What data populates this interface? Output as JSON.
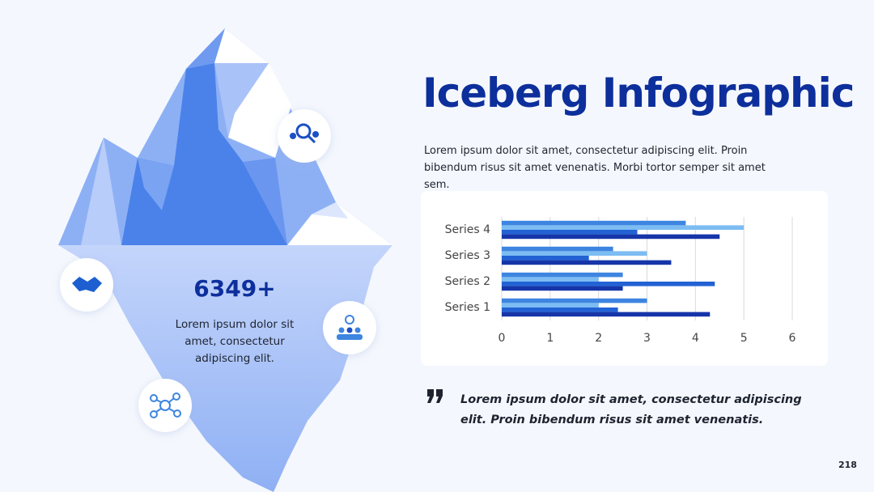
{
  "title": "Iceberg Infographic",
  "description": "Lorem ipsum dolor sit amet, consectetur adipiscing elit. Proin bibendum risus sit amet venenatis. Morbi tortor semper sit amet sem.",
  "stat": {
    "value": "6349+",
    "text": "Lorem ipsum dolor sit amet, consectetur adipiscing elit."
  },
  "quote": "Lorem ipsum dolor sit amet, consectetur adipiscing elit. Proin bibendum risus sit amet venenatis.",
  "page_number": "218",
  "chart_data": {
    "type": "bar",
    "orientation": "horizontal",
    "categories": [
      "Series 1",
      "Series 2",
      "Series 3",
      "Series 4"
    ],
    "series": [
      {
        "color": "#3d85e0",
        "values": [
          3,
          2.5,
          2.3,
          3.8
        ]
      },
      {
        "color": "#7dbcf2",
        "values": [
          2,
          2,
          3,
          5
        ]
      },
      {
        "color": "#2262d4",
        "values": [
          2.4,
          4.4,
          1.8,
          2.8
        ]
      },
      {
        "color": "#1535a8",
        "values": [
          4.3,
          2.5,
          3.5,
          4.5
        ]
      }
    ],
    "xlim": [
      0,
      6
    ],
    "xticks": [
      0,
      1,
      2,
      3,
      4,
      5,
      6
    ],
    "grid": true
  }
}
